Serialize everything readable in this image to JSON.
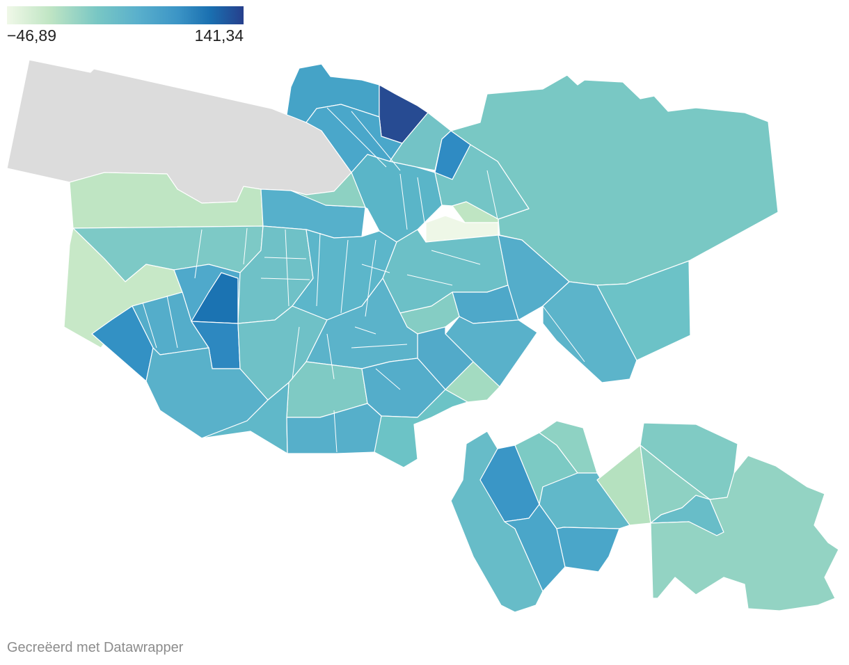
{
  "legend": {
    "min_label": "−46,89",
    "max_label": "141,34",
    "scale_colors": [
      "#f0f8e8",
      "#c0e5c4",
      "#79c7c4",
      "#5ab0cc",
      "#3c95c6",
      "#1a6fb0",
      "#263f8c"
    ]
  },
  "credit": "Gecreëerd met Datawrapper",
  "colors": {
    "no_data": "#dcdcdc",
    "border": "#ffffff"
  }
}
